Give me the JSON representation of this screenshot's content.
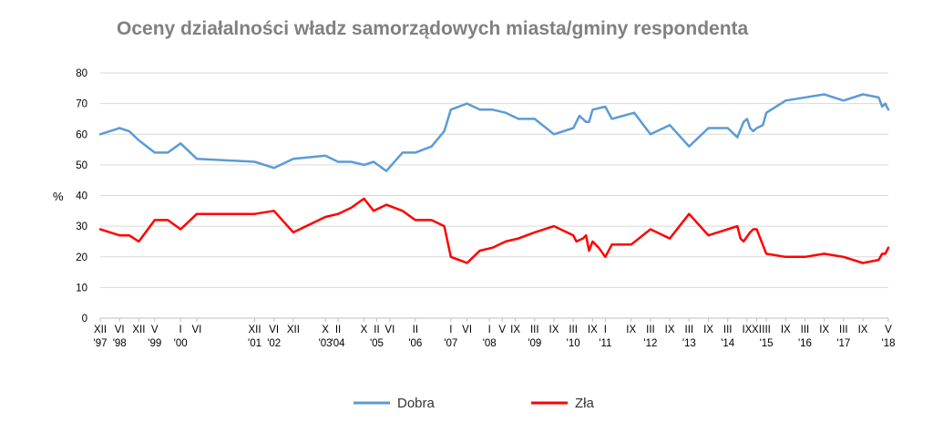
{
  "chart_data": {
    "type": "line",
    "title": "Oceny działalności władz samorządowych miasta/gminy respondenta",
    "ylabel": "%",
    "ylim": [
      0,
      80
    ],
    "yticks": [
      0,
      10,
      20,
      30,
      40,
      50,
      60,
      70,
      80
    ],
    "grid": true,
    "legend_position": "bottom",
    "x_ticks": [
      {
        "x": 1997.92,
        "label": "XII",
        "year": "'97"
      },
      {
        "x": 1998.42,
        "label": "VI",
        "year": "'98"
      },
      {
        "x": 1998.92,
        "label": "XII",
        "year": ""
      },
      {
        "x": 1999.33,
        "label": "V",
        "year": "'99"
      },
      {
        "x": 2000.0,
        "label": "I",
        "year": "'00"
      },
      {
        "x": 2000.42,
        "label": "VI",
        "year": ""
      },
      {
        "x": 2001.92,
        "label": "XII",
        "year": "'01"
      },
      {
        "x": 2002.42,
        "label": "VI",
        "year": "'02"
      },
      {
        "x": 2002.92,
        "label": "XII",
        "year": ""
      },
      {
        "x": 2003.75,
        "label": "X",
        "year": "'03"
      },
      {
        "x": 2004.08,
        "label": "II",
        "year": "'04"
      },
      {
        "x": 2004.75,
        "label": "X",
        "year": ""
      },
      {
        "x": 2005.08,
        "label": "II",
        "year": "'05"
      },
      {
        "x": 2005.42,
        "label": "VI",
        "year": ""
      },
      {
        "x": 2006.08,
        "label": "II",
        "year": "'06"
      },
      {
        "x": 2007.0,
        "label": "I",
        "year": "'07"
      },
      {
        "x": 2007.42,
        "label": "VI",
        "year": ""
      },
      {
        "x": 2008.0,
        "label": "I",
        "year": "'08"
      },
      {
        "x": 2008.33,
        "label": "V",
        "year": ""
      },
      {
        "x": 2008.67,
        "label": "IX",
        "year": ""
      },
      {
        "x": 2009.17,
        "label": "III",
        "year": "'09"
      },
      {
        "x": 2009.67,
        "label": "IX",
        "year": ""
      },
      {
        "x": 2010.17,
        "label": "III",
        "year": "'10"
      },
      {
        "x": 2010.67,
        "label": "IX",
        "year": ""
      },
      {
        "x": 2011.0,
        "label": "I",
        "year": "'11"
      },
      {
        "x": 2011.67,
        "label": "IX",
        "year": ""
      },
      {
        "x": 2012.17,
        "label": "III",
        "year": "'12"
      },
      {
        "x": 2012.67,
        "label": "IX",
        "year": ""
      },
      {
        "x": 2013.17,
        "label": "III",
        "year": "'13"
      },
      {
        "x": 2013.67,
        "label": "IX",
        "year": ""
      },
      {
        "x": 2014.17,
        "label": "III",
        "year": "'14"
      },
      {
        "x": 2014.67,
        "label": "IX",
        "year": ""
      },
      {
        "x": 2014.92,
        "label": "XI",
        "year": ""
      },
      {
        "x": 2015.17,
        "label": "III",
        "year": "'15"
      },
      {
        "x": 2015.67,
        "label": "IX",
        "year": ""
      },
      {
        "x": 2016.17,
        "label": "III",
        "year": "'16"
      },
      {
        "x": 2016.67,
        "label": "IX",
        "year": ""
      },
      {
        "x": 2017.17,
        "label": "III",
        "year": "'17"
      },
      {
        "x": 2017.67,
        "label": "IX",
        "year": ""
      },
      {
        "x": 2018.33,
        "label": "V",
        "year": "'18"
      }
    ],
    "series": [
      {
        "name": "Dobra",
        "color": "#5B9BD5",
        "points": [
          [
            1997.92,
            60
          ],
          [
            1998.42,
            62
          ],
          [
            1998.67,
            61
          ],
          [
            1998.92,
            58
          ],
          [
            1999.33,
            54
          ],
          [
            1999.67,
            54
          ],
          [
            2000.0,
            57
          ],
          [
            2000.42,
            52
          ],
          [
            2001.92,
            51
          ],
          [
            2002.42,
            49
          ],
          [
            2002.92,
            52
          ],
          [
            2003.75,
            53
          ],
          [
            2004.08,
            51
          ],
          [
            2004.42,
            51
          ],
          [
            2004.75,
            50
          ],
          [
            2005.0,
            51
          ],
          [
            2005.33,
            48
          ],
          [
            2005.75,
            54
          ],
          [
            2006.08,
            54
          ],
          [
            2006.5,
            56
          ],
          [
            2006.83,
            61
          ],
          [
            2007.0,
            68
          ],
          [
            2007.42,
            70
          ],
          [
            2007.75,
            68
          ],
          [
            2008.08,
            68
          ],
          [
            2008.42,
            67
          ],
          [
            2008.75,
            65
          ],
          [
            2009.17,
            65
          ],
          [
            2009.67,
            60
          ],
          [
            2010.17,
            62
          ],
          [
            2010.33,
            66
          ],
          [
            2010.5,
            64
          ],
          [
            2010.58,
            64
          ],
          [
            2010.67,
            68
          ],
          [
            2011.0,
            69
          ],
          [
            2011.17,
            65
          ],
          [
            2011.75,
            67
          ],
          [
            2012.17,
            60
          ],
          [
            2012.67,
            63
          ],
          [
            2013.17,
            56
          ],
          [
            2013.67,
            62
          ],
          [
            2014.17,
            62
          ],
          [
            2014.42,
            59
          ],
          [
            2014.58,
            64
          ],
          [
            2014.67,
            65
          ],
          [
            2014.75,
            62
          ],
          [
            2014.83,
            61
          ],
          [
            2014.92,
            62
          ],
          [
            2015.08,
            63
          ],
          [
            2015.17,
            67
          ],
          [
            2015.67,
            71
          ],
          [
            2016.67,
            73
          ],
          [
            2017.17,
            71
          ],
          [
            2017.67,
            73
          ],
          [
            2018.08,
            72
          ],
          [
            2018.17,
            69
          ],
          [
            2018.25,
            70
          ],
          [
            2018.33,
            68
          ]
        ]
      },
      {
        "name": "Zła",
        "color": "#FF0000",
        "points": [
          [
            1997.92,
            29
          ],
          [
            1998.42,
            27
          ],
          [
            1998.67,
            27
          ],
          [
            1998.92,
            25
          ],
          [
            1999.33,
            32
          ],
          [
            1999.67,
            32
          ],
          [
            2000.0,
            29
          ],
          [
            2000.42,
            34
          ],
          [
            2001.92,
            34
          ],
          [
            2002.42,
            35
          ],
          [
            2002.92,
            28
          ],
          [
            2003.75,
            33
          ],
          [
            2004.08,
            34
          ],
          [
            2004.42,
            36
          ],
          [
            2004.75,
            39
          ],
          [
            2005.0,
            35
          ],
          [
            2005.33,
            37
          ],
          [
            2005.75,
            35
          ],
          [
            2006.08,
            32
          ],
          [
            2006.5,
            32
          ],
          [
            2006.83,
            30
          ],
          [
            2007.0,
            20
          ],
          [
            2007.42,
            18
          ],
          [
            2007.75,
            22
          ],
          [
            2008.08,
            23
          ],
          [
            2008.42,
            25
          ],
          [
            2008.75,
            26
          ],
          [
            2009.17,
            28
          ],
          [
            2009.67,
            30
          ],
          [
            2010.17,
            27
          ],
          [
            2010.25,
            25
          ],
          [
            2010.42,
            26
          ],
          [
            2010.5,
            27
          ],
          [
            2010.58,
            22
          ],
          [
            2010.67,
            25
          ],
          [
            2010.83,
            23
          ],
          [
            2011.0,
            20
          ],
          [
            2011.17,
            24
          ],
          [
            2011.67,
            24
          ],
          [
            2012.17,
            29
          ],
          [
            2012.67,
            26
          ],
          [
            2013.17,
            34
          ],
          [
            2013.67,
            27
          ],
          [
            2014.17,
            29
          ],
          [
            2014.42,
            30
          ],
          [
            2014.5,
            26
          ],
          [
            2014.58,
            25
          ],
          [
            2014.75,
            28
          ],
          [
            2014.83,
            29
          ],
          [
            2014.92,
            29
          ],
          [
            2015.17,
            21
          ],
          [
            2015.67,
            20
          ],
          [
            2016.17,
            20
          ],
          [
            2016.67,
            21
          ],
          [
            2017.17,
            20
          ],
          [
            2017.67,
            18
          ],
          [
            2018.08,
            19
          ],
          [
            2018.17,
            21
          ],
          [
            2018.25,
            21
          ],
          [
            2018.33,
            23
          ]
        ]
      }
    ]
  }
}
